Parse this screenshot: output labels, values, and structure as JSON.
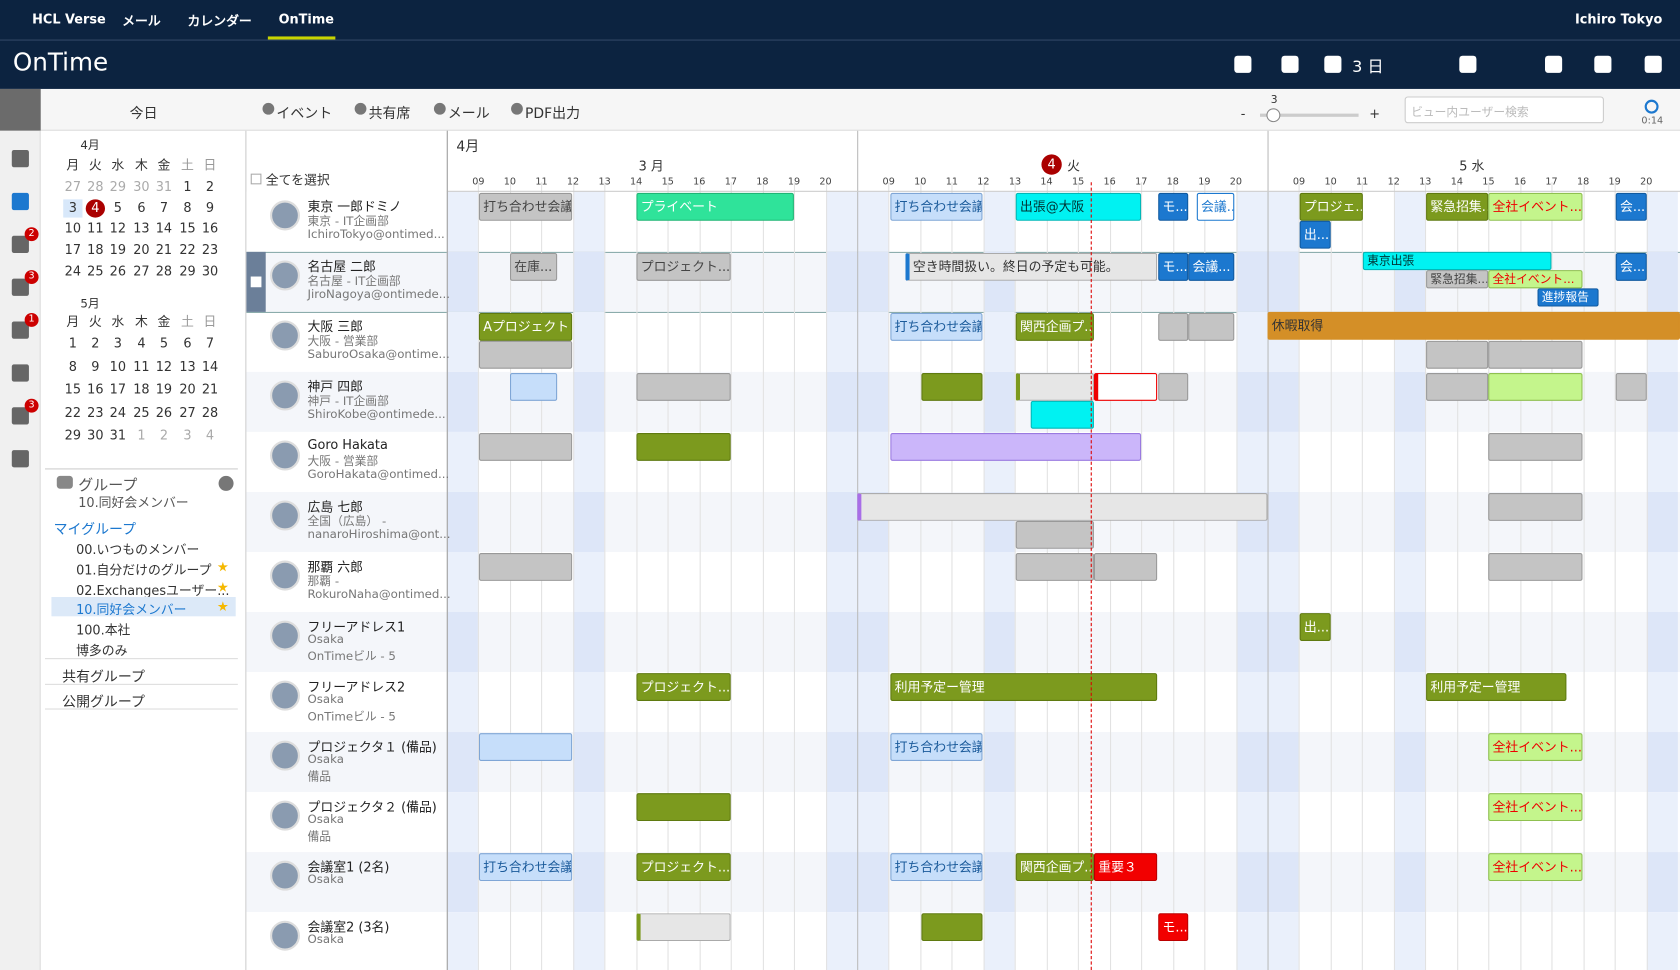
{
  "top_nav": {
    "items": [
      "HCL Verse",
      "メール",
      "カレンダー",
      "OnTime"
    ],
    "user": "Ichiro Tokyo"
  },
  "header": {
    "logo": "OnTime",
    "view": "3 日"
  },
  "toolbar": {
    "today": "今日",
    "actions": [
      "イベント",
      "共有席",
      "メール",
      "PDF出力"
    ],
    "zoom_value": "3",
    "zoom_minus": "-",
    "zoom_plus": "+",
    "search_placeholder": "ビュー内ユーザー検索",
    "refresh_time": "0:14"
  },
  "sidebar_badges": [
    "2",
    "3",
    "1",
    "3"
  ],
  "mini_calendars": [
    {
      "title": "4月",
      "weekdays": [
        "月",
        "火",
        "水",
        "木",
        "金",
        "土",
        "日"
      ],
      "weeks": [
        [
          27,
          28,
          29,
          30,
          31,
          1,
          2
        ],
        [
          3,
          4,
          5,
          6,
          7,
          8,
          9
        ],
        [
          10,
          11,
          12,
          13,
          14,
          15,
          16
        ],
        [
          17,
          18,
          19,
          20,
          21,
          22,
          23
        ],
        [
          24,
          25,
          26,
          27,
          28,
          29,
          30
        ]
      ]
    },
    {
      "title": "5月",
      "weekdays": [
        "月",
        "火",
        "水",
        "木",
        "金",
        "土",
        "日"
      ],
      "weeks": [
        [
          1,
          2,
          3,
          4,
          5,
          6,
          7
        ],
        [
          8,
          9,
          10,
          11,
          12,
          13,
          14
        ],
        [
          15,
          16,
          17,
          18,
          19,
          20,
          21
        ],
        [
          22,
          23,
          24,
          25,
          26,
          27,
          28
        ],
        [
          29,
          30,
          31,
          1,
          2,
          3,
          4
        ]
      ]
    }
  ],
  "groups": {
    "title": "グループ",
    "current": "10.同好会メンバー",
    "my_group": "マイグループ",
    "items": [
      "00.いつものメンバー",
      "01.自分だけのグループ",
      "02.Exchangesユーザー...",
      "10.同好会メンバー",
      "100.本社",
      "博多のみ"
    ],
    "shared": "共有グループ",
    "public": "公開グループ"
  },
  "calendar": {
    "month": "4月",
    "select_all": "全てを選択",
    "days": [
      {
        "label": "3 月"
      },
      {
        "badge": "4",
        "label": "火"
      },
      {
        "label": "5 水"
      }
    ],
    "hours": [
      "09",
      "10",
      "11",
      "12",
      "13",
      "14",
      "15",
      "16",
      "17",
      "18",
      "19",
      "20"
    ],
    "users": [
      [
        "東京 一郎ドミノ",
        "東京 - IT企画部",
        "IchiroTokyo@ontimed..."
      ],
      [
        "名古屋 二郎",
        "名古屋 - IT企画部",
        "JiroNagoya@ontimede..."
      ],
      [
        "大阪 三郎",
        "大阪 - 営業部",
        "SaburoOsaka@ontime..."
      ],
      [
        "神戸 四郎",
        "神戸 - IT企画部",
        "ShiroKobe@ontimede..."
      ],
      [
        "Goro Hakata",
        "大阪 - 営業部",
        "GoroHakata@ontimed..."
      ],
      [
        "広島 七郎",
        "全国（広島） -",
        "nanaroHiroshima@ont..."
      ],
      [
        "那覇 六郎",
        "那覇 -",
        "RokuroNaha@ontimed..."
      ],
      [
        "フリーアドレス1",
        "Osaka",
        "OnTimeビル - 5"
      ],
      [
        "フリーアドレス2",
        "Osaka",
        "OnTimeビル - 5"
      ],
      [
        "プロジェクタ１ (備品)",
        "Osaka",
        "備品"
      ],
      [
        "プロジェクタ２ (備品)",
        "Osaka",
        "備品"
      ],
      [
        "会議室1 (2名)",
        "Osaka"
      ],
      [
        "会議室2 (3名)",
        "Osaka"
      ]
    ],
    "events": [
      "打ち合わせ会議",
      "プライベート",
      "打ち合わせ会議",
      "出張@大阪",
      "モ...",
      "会議...",
      "プロジェ...",
      "出...",
      "緊急招集...",
      "全社イベント...",
      "会...",
      "在庫...",
      "プロジェクト...",
      "空き時間扱い。終日の予定も可能。",
      "モ...",
      "会議...",
      "東京出張",
      "緊急招集...",
      "全社イベント...",
      "進捗報告",
      "会...",
      "Aプロジェクト",
      "打ち合わせ会議",
      "関西企画プ...",
      "休暇取得",
      "出...",
      "プロジェクト...",
      "利用予定ー管理",
      "利用予定ー管理",
      "打ち合わせ会議",
      "全社イベント...",
      "全社イベント...",
      "打ち合わせ会議",
      "プロジェクト...",
      "打ち合わせ会議",
      "関西企画プ...",
      "重要３",
      "全社イベント...",
      "モ..."
    ]
  }
}
